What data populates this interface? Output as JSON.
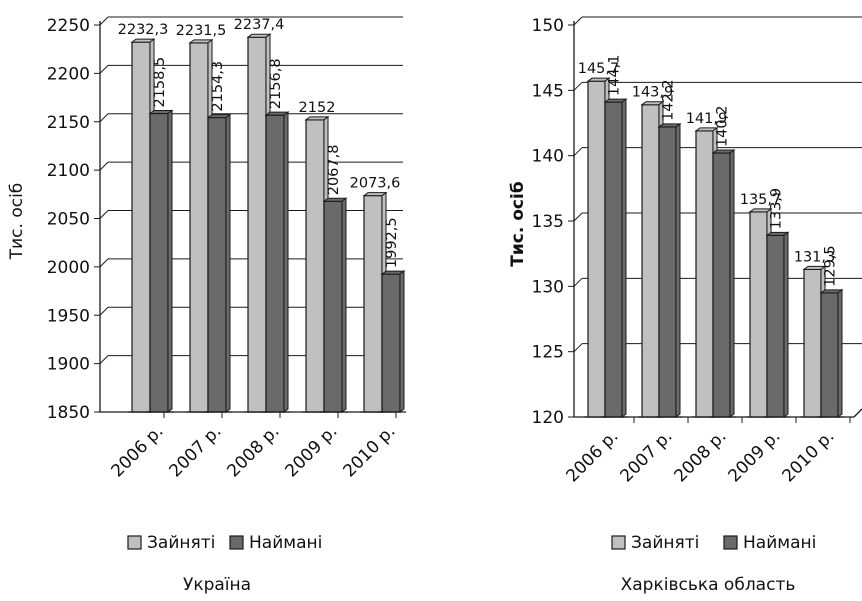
{
  "colors": {
    "series_1": "#c0c0c0",
    "series_2": "#6a6a6a",
    "bar_stroke": "#1a1a1a",
    "axis": "#1a1a1a"
  },
  "chart_data": [
    {
      "type": "bar",
      "title": "",
      "caption": "Україна",
      "ylabel": "Тис. осіб",
      "ylabel_bold": false,
      "categories": [
        "2006 р.",
        "2007 р.",
        "2008 р.",
        "2009 р.",
        "2010 р."
      ],
      "series": [
        {
          "name": "Зайняті",
          "values": [
            2232.3,
            2231.5,
            2237.4,
            2152,
            2073.6
          ]
        },
        {
          "name": "Наймані",
          "values": [
            2158.5,
            2154.3,
            2156.8,
            2067.8,
            1992.5
          ]
        }
      ],
      "value_labels": [
        [
          "2232,3",
          "2231,5",
          "2237,4",
          "2152",
          "2073,6"
        ],
        [
          "2158,5",
          "2154,3",
          "2156,8",
          "2067,8",
          "1992,5"
        ]
      ],
      "yticks": [
        "1850",
        "1900",
        "1950",
        "2000",
        "2050",
        "2100",
        "2150",
        "2200",
        "2250"
      ],
      "ylim": [
        1850,
        2250
      ],
      "legend": "bottom",
      "grid": true
    },
    {
      "type": "bar",
      "title": "",
      "caption": "Харківська область",
      "ylabel": "Тис. осіб",
      "ylabel_bold": true,
      "categories": [
        "2006 р.",
        "2007 р.",
        "2008 р.",
        "2009 р.",
        "2010 р."
      ],
      "series": [
        {
          "name": "Зайняті",
          "values": [
            145.7,
            143.9,
            141.9,
            135.7,
            131.3
          ]
        },
        {
          "name": "Наймані",
          "values": [
            144.1,
            142.2,
            140.2,
            133.9,
            129.5
          ]
        }
      ],
      "value_labels": [
        [
          "145,7",
          "143,9",
          "141,9",
          "135,7",
          "131,3"
        ],
        [
          "144,1",
          "142,2",
          "140,2",
          "133,9",
          "129,5"
        ]
      ],
      "yticks": [
        "120",
        "125",
        "130",
        "135",
        "140",
        "145",
        "150"
      ],
      "ylim": [
        120,
        150
      ],
      "legend": "bottom",
      "grid": true
    }
  ]
}
